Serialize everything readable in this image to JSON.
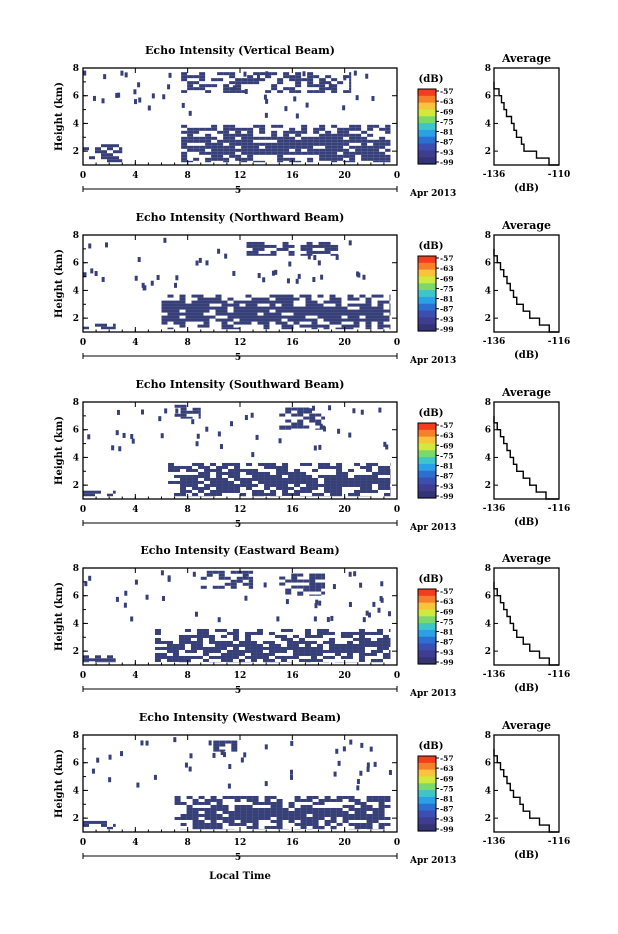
{
  "x_axis_label": "Local Time",
  "colorbar": {
    "unit": "(dB)",
    "ticks": [
      "-57",
      "-63",
      "-69",
      "-75",
      "-81",
      "-87",
      "-93",
      "-99"
    ],
    "colors": [
      "#f43c1f",
      "#f67f2a",
      "#f9c43b",
      "#cfe93c",
      "#7bd96b",
      "#3ec5c8",
      "#2aa0e6",
      "#2c6fd1",
      "#3c4fb0",
      "#3e3d8f",
      "#343474"
    ]
  },
  "chart_data": [
    {
      "type": "heatmap",
      "title": "Echo Intensity (Vertical Beam)",
      "ylabel": "Height (km)",
      "xlabel": "Local Time",
      "x_ticks": [
        "0",
        "4",
        "8",
        "12",
        "16",
        "20",
        "0"
      ],
      "y_ticks": [
        "2",
        "4",
        "6",
        "8"
      ],
      "xlim": [
        0,
        24
      ],
      "ylim": [
        1,
        8
      ],
      "date_label": "5",
      "month_label": "Apr 2013",
      "echo_regions": [
        {
          "x": [
            0,
            3
          ],
          "y": [
            1.2,
            2.5
          ],
          "level": "-99"
        },
        {
          "x": [
            7.5,
            23.5
          ],
          "y": [
            1.2,
            3.9
          ],
          "level": "-99"
        },
        {
          "x": [
            7.5,
            20.5
          ],
          "y": [
            6.2,
            7.7
          ],
          "level": "-99"
        }
      ],
      "average_profile": {
        "title": "Average",
        "xlabel": "(dB)",
        "x_ticks": [
          "-136",
          "-110"
        ],
        "y_ticks": [
          "2",
          "4",
          "6",
          "8"
        ],
        "xlim": [
          -136,
          -110
        ],
        "ylim": [
          1,
          8
        ],
        "height": [
          1.0,
          1.5,
          2.0,
          2.5,
          3.0,
          3.5,
          4.0,
          4.5,
          5.0,
          5.5,
          6.0,
          6.5,
          7.0
        ],
        "value": [
          -110,
          -114,
          -119,
          -124,
          -125,
          -127,
          -128,
          -129,
          -131,
          -132,
          -133,
          -134,
          -136
        ]
      }
    },
    {
      "type": "heatmap",
      "title": "Echo Intensity (Northward Beam)",
      "ylabel": "Height (km)",
      "xlabel": "Local Time",
      "x_ticks": [
        "0",
        "4",
        "8",
        "12",
        "16",
        "20",
        "0"
      ],
      "y_ticks": [
        "2",
        "4",
        "6",
        "8"
      ],
      "xlim": [
        0,
        24
      ],
      "ylim": [
        1,
        8
      ],
      "date_label": "5",
      "month_label": "Apr 2013",
      "echo_regions": [
        {
          "x": [
            0,
            2.5
          ],
          "y": [
            1.2,
            1.6
          ],
          "level": "-99"
        },
        {
          "x": [
            6,
            23.5
          ],
          "y": [
            1.2,
            3.7
          ],
          "level": "-99"
        },
        {
          "x": [
            12.5,
            19.5
          ],
          "y": [
            6.5,
            7.5
          ],
          "level": "-99"
        }
      ],
      "average_profile": {
        "title": "Average",
        "xlabel": "(dB)",
        "x_ticks": [
          "-136",
          "-116"
        ],
        "y_ticks": [
          "2",
          "4",
          "6",
          "8"
        ],
        "xlim": [
          -136,
          -116
        ],
        "ylim": [
          1,
          8
        ],
        "height": [
          1.0,
          1.5,
          2.0,
          2.5,
          3.0,
          3.5,
          4.0,
          4.5,
          5.0,
          5.5,
          6.0,
          6.5,
          7.0
        ],
        "value": [
          -116,
          -119,
          -122,
          -125,
          -127,
          -129,
          -130,
          -131,
          -132,
          -133,
          -134,
          -135,
          -136
        ]
      }
    },
    {
      "type": "heatmap",
      "title": "Echo Intensity (Southward Beam)",
      "ylabel": "Height (km)",
      "xlabel": "Local Time",
      "x_ticks": [
        "0",
        "4",
        "8",
        "12",
        "16",
        "20",
        "0"
      ],
      "y_ticks": [
        "2",
        "4",
        "6",
        "8"
      ],
      "xlim": [
        0,
        24
      ],
      "ylim": [
        1,
        8
      ],
      "date_label": "5",
      "month_label": "Apr 2013",
      "echo_regions": [
        {
          "x": [
            0,
            2.5
          ],
          "y": [
            1.2,
            1.6
          ],
          "level": "-99"
        },
        {
          "x": [
            6.5,
            23.5
          ],
          "y": [
            1.2,
            3.6
          ],
          "level": "-99"
        },
        {
          "x": [
            7,
            9
          ],
          "y": [
            6.8,
            7.8
          ],
          "level": "-99"
        },
        {
          "x": [
            15,
            18.5
          ],
          "y": [
            6.0,
            7.6
          ],
          "level": "-99"
        }
      ],
      "average_profile": {
        "title": "Average",
        "xlabel": "(dB)",
        "x_ticks": [
          "-136",
          "-116"
        ],
        "y_ticks": [
          "2",
          "4",
          "6",
          "8"
        ],
        "xlim": [
          -136,
          -116
        ],
        "ylim": [
          1,
          8
        ],
        "height": [
          1.0,
          1.5,
          2.0,
          2.5,
          3.0,
          3.5,
          4.0,
          4.5,
          5.0,
          5.5,
          6.0,
          6.5,
          7.0
        ],
        "value": [
          -116,
          -120,
          -123,
          -125,
          -127,
          -129,
          -130,
          -131,
          -132,
          -133,
          -134,
          -135,
          -136
        ]
      }
    },
    {
      "type": "heatmap",
      "title": "Echo Intensity (Eastward Beam)",
      "ylabel": "Height (km)",
      "xlabel": "Local Time",
      "x_ticks": [
        "0",
        "4",
        "8",
        "12",
        "16",
        "20",
        "0"
      ],
      "y_ticks": [
        "2",
        "4",
        "6",
        "8"
      ],
      "xlim": [
        0,
        24
      ],
      "ylim": [
        1,
        8
      ],
      "date_label": "5",
      "month_label": "Apr 2013",
      "echo_regions": [
        {
          "x": [
            0,
            2.5
          ],
          "y": [
            1.2,
            1.7
          ],
          "level": "-99"
        },
        {
          "x": [
            5.5,
            23.5
          ],
          "y": [
            1.2,
            3.6
          ],
          "level": "-99"
        },
        {
          "x": [
            9,
            13
          ],
          "y": [
            6.5,
            7.8
          ],
          "level": "-99"
        },
        {
          "x": [
            15,
            18.5
          ],
          "y": [
            6.0,
            7.6
          ],
          "level": "-99"
        }
      ],
      "average_profile": {
        "title": "Average",
        "xlabel": "(dB)",
        "x_ticks": [
          "-136",
          "-116"
        ],
        "y_ticks": [
          "2",
          "4",
          "6",
          "8"
        ],
        "xlim": [
          -136,
          -116
        ],
        "ylim": [
          1,
          8
        ],
        "height": [
          1.0,
          1.5,
          2.0,
          2.5,
          3.0,
          3.5,
          4.0,
          4.5,
          5.0,
          5.5,
          6.0,
          6.5,
          7.0
        ],
        "value": [
          -116,
          -119,
          -122,
          -125,
          -127,
          -129,
          -130,
          -131,
          -132,
          -133,
          -134,
          -135,
          -136
        ]
      }
    },
    {
      "type": "heatmap",
      "title": "Echo Intensity (Westward Beam)",
      "ylabel": "Height (km)",
      "xlabel": "Local Time",
      "x_ticks": [
        "0",
        "4",
        "8",
        "12",
        "16",
        "20",
        "0"
      ],
      "y_ticks": [
        "2",
        "4",
        "6",
        "8"
      ],
      "xlim": [
        0,
        24
      ],
      "ylim": [
        1,
        8
      ],
      "date_label": "5",
      "month_label": "Apr 2013",
      "echo_regions": [
        {
          "x": [
            0,
            2.5
          ],
          "y": [
            1.2,
            1.8
          ],
          "level": "-99"
        },
        {
          "x": [
            7,
            23.5
          ],
          "y": [
            1.2,
            3.6
          ],
          "level": "-99"
        },
        {
          "x": [
            9.5,
            12
          ],
          "y": [
            6.8,
            7.6
          ],
          "level": "-99"
        }
      ],
      "average_profile": {
        "title": "Average",
        "xlabel": "(dB)",
        "x_ticks": [
          "-136",
          "-116"
        ],
        "y_ticks": [
          "2",
          "4",
          "6",
          "8"
        ],
        "xlim": [
          -136,
          -116
        ],
        "ylim": [
          1,
          8
        ],
        "height": [
          1.0,
          1.5,
          2.0,
          2.5,
          3.0,
          3.5,
          4.0,
          4.5,
          5.0,
          5.5,
          6.0,
          6.5,
          7.0
        ],
        "value": [
          -116,
          -119,
          -122,
          -125,
          -127,
          -128,
          -130,
          -131,
          -132,
          -133,
          -134,
          -135,
          -136
        ]
      }
    }
  ]
}
